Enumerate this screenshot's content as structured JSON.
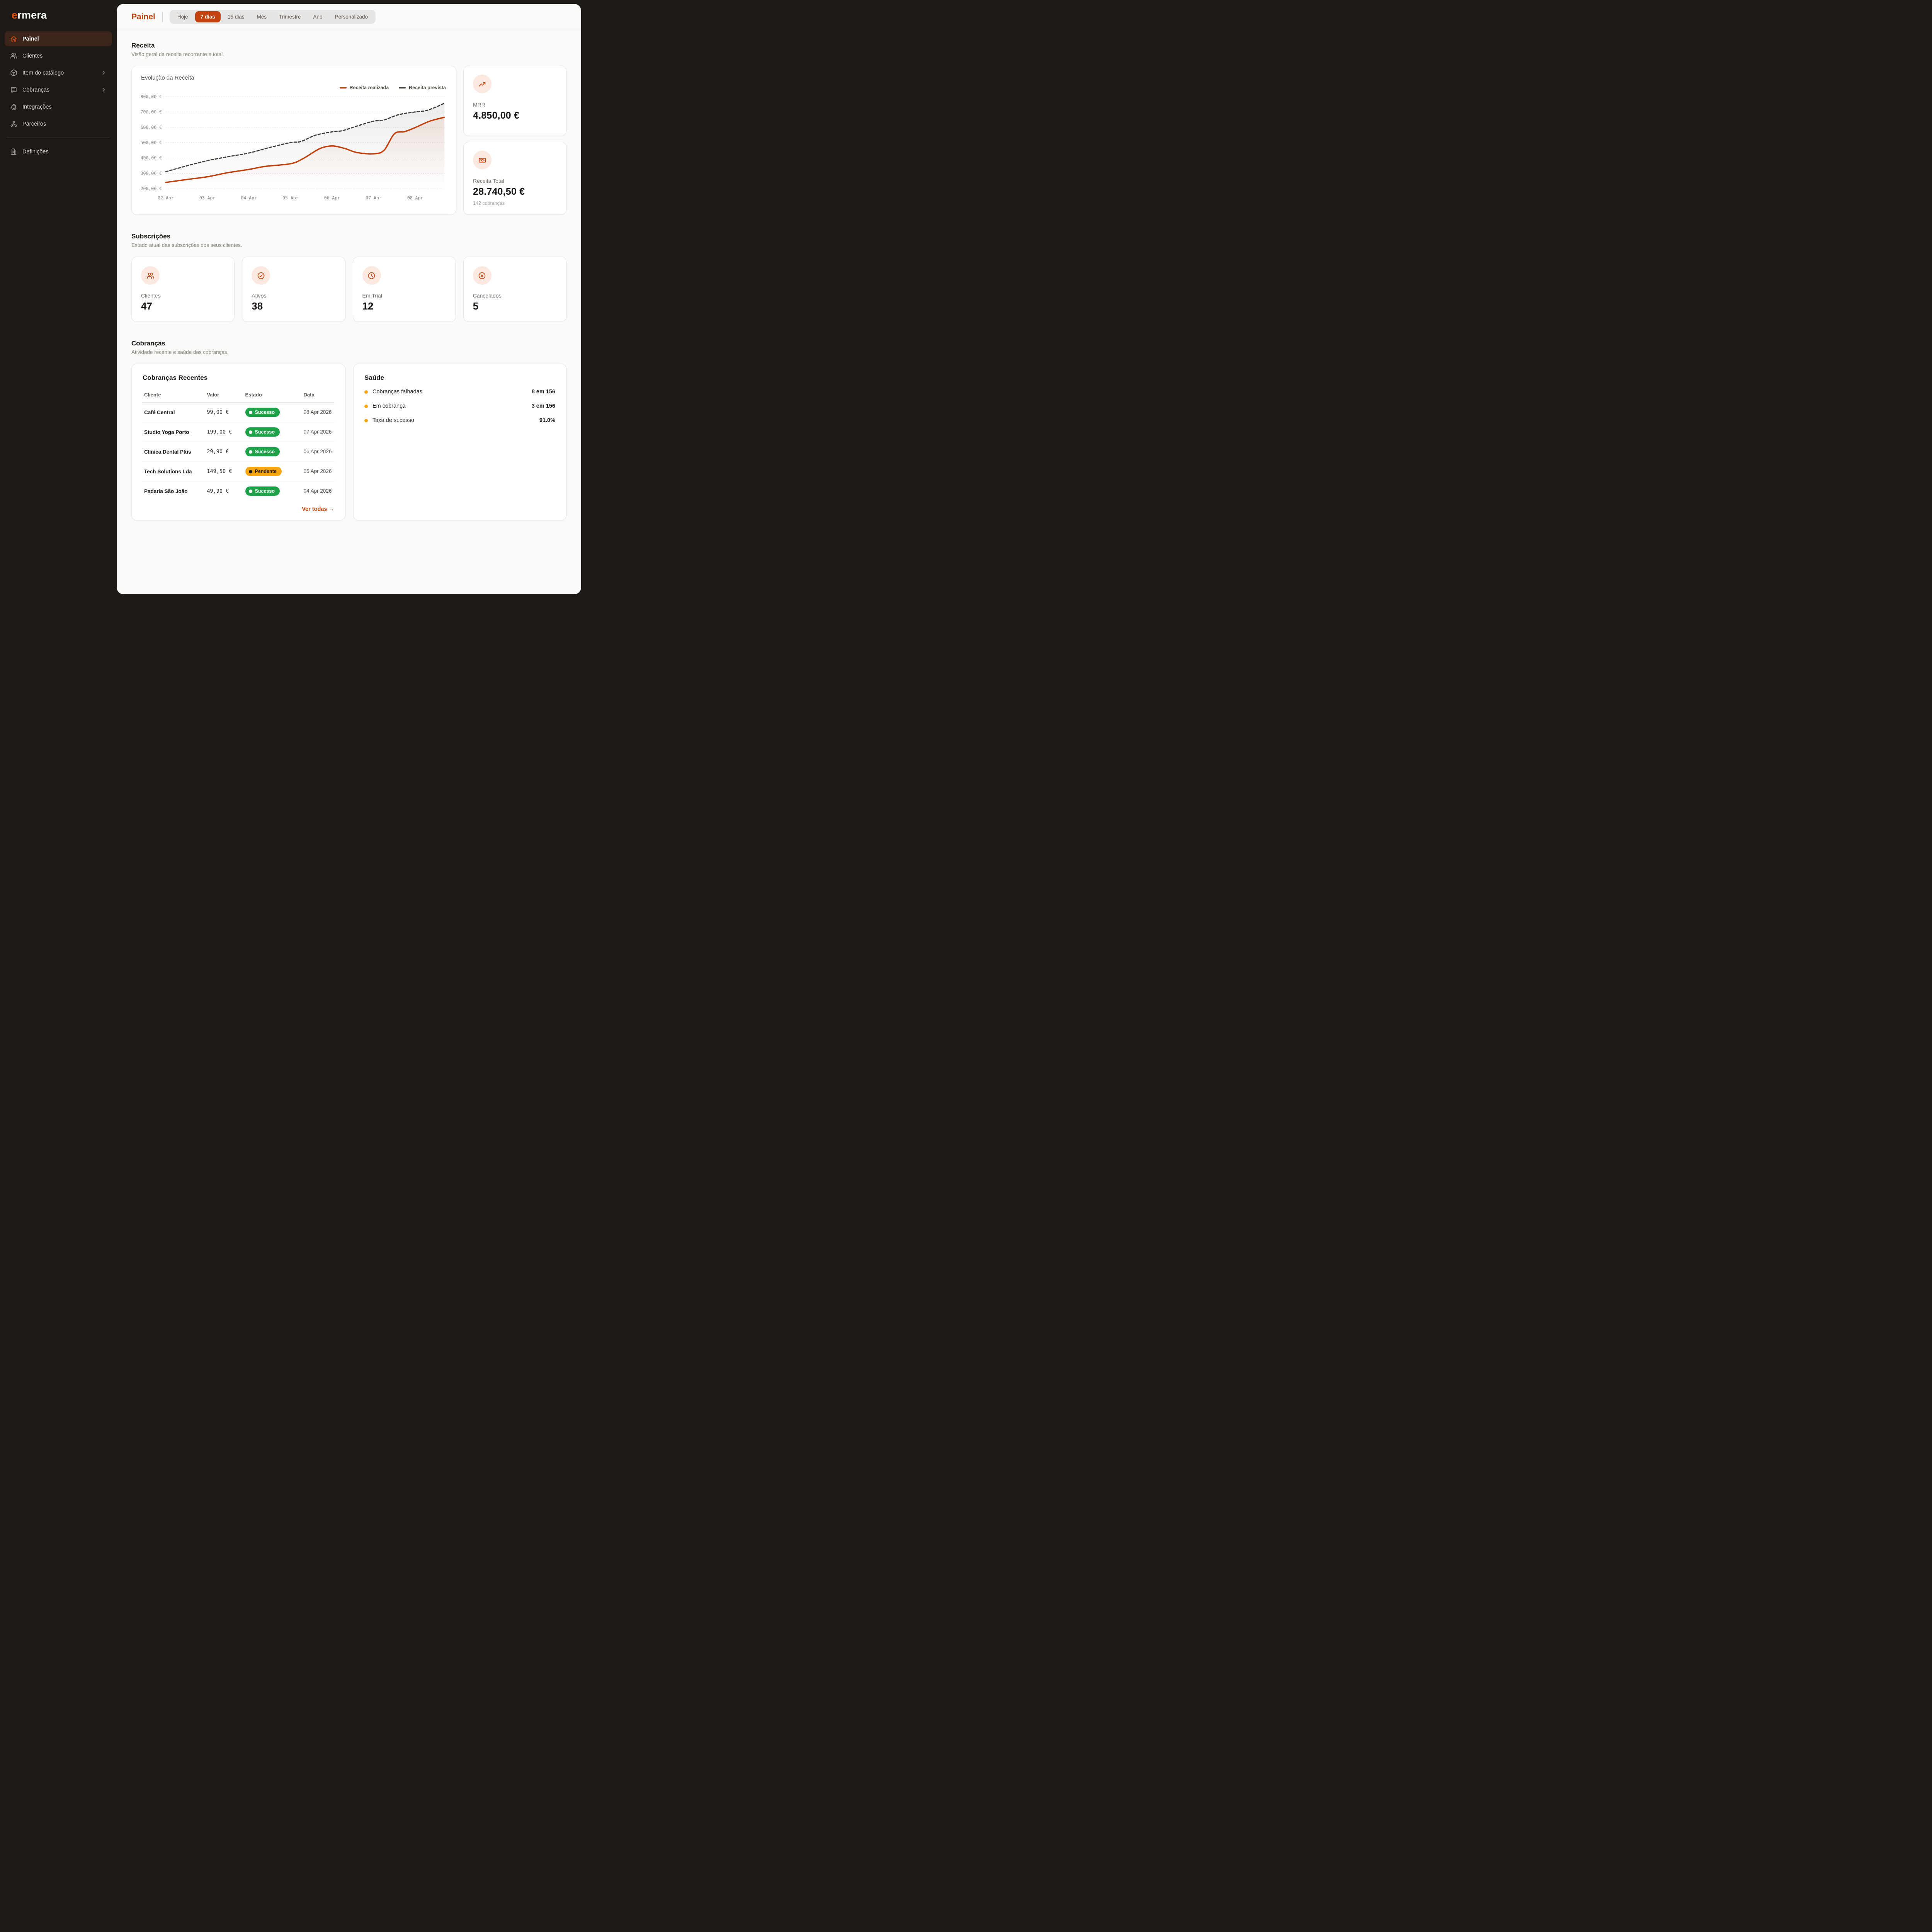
{
  "sidebar": {
    "logo_accent": "e",
    "logo_rest": "rmera",
    "items": [
      {
        "label": "Painel",
        "icon": "home",
        "active": true
      },
      {
        "label": "Clientes",
        "icon": "users"
      },
      {
        "label": "Item do catálogo",
        "icon": "package",
        "chevron": true
      },
      {
        "label": "Cobranças",
        "icon": "receipt",
        "chevron": true
      },
      {
        "label": "Integrações",
        "icon": "puzzle"
      },
      {
        "label": "Parceiros",
        "icon": "network"
      }
    ],
    "footer_item": {
      "label": "Definições",
      "icon": "building"
    }
  },
  "header": {
    "title": "Painel",
    "tabs": [
      {
        "label": "Hoje"
      },
      {
        "label": "7 dias",
        "active": true
      },
      {
        "label": "15 dias"
      },
      {
        "label": "Mês"
      },
      {
        "label": "Trimestre"
      },
      {
        "label": "Ano"
      },
      {
        "label": "Personalizado"
      }
    ]
  },
  "revenue_section": {
    "title": "Receita",
    "subtitle": "Visão geral da receita recorrente e total.",
    "card_title": "Evolução da Receita",
    "legend": [
      {
        "label": "Receita realizada",
        "color": "#C2410C"
      },
      {
        "label": "Receita prevista",
        "color": "#44403C"
      }
    ]
  },
  "chart_data": {
    "type": "line",
    "title": "Evolução da Receita",
    "x_ticks": [
      "02 Apr",
      "03 Apr",
      "04 Apr",
      "05 Apr",
      "06 Apr",
      "07 Apr",
      "08 Apr"
    ],
    "x_tick_days": [
      2,
      3,
      4,
      5,
      6,
      7,
      8
    ],
    "x_range": [
      2,
      8.7
    ],
    "ylim": [
      200,
      800
    ],
    "y_ticks": [
      "200,00 €",
      "300,00 €",
      "400,00 €",
      "500,00 €",
      "600,00 €",
      "700,00 €",
      "800,00 €"
    ],
    "y_tick_values": [
      200,
      300,
      400,
      500,
      600,
      700,
      800
    ],
    "grid": "dotted-horizontal",
    "legend_position": "top-right",
    "series": [
      {
        "name": "Receita realizada",
        "color": "#C2410C",
        "style": "solid",
        "points": [
          [
            2,
            240
          ],
          [
            2.5,
            259
          ],
          [
            3,
            277
          ],
          [
            3.5,
            304
          ],
          [
            4,
            325
          ],
          [
            4.4,
            345
          ],
          [
            5,
            362
          ],
          [
            5.3,
            395
          ],
          [
            5.7,
            460
          ],
          [
            6,
            478
          ],
          [
            6.3,
            462
          ],
          [
            6.6,
            435
          ],
          [
            7,
            427
          ],
          [
            7.25,
            450
          ],
          [
            7.5,
            558
          ],
          [
            7.75,
            572
          ],
          [
            8,
            598
          ],
          [
            8.35,
            640
          ],
          [
            8.7,
            665
          ]
        ]
      },
      {
        "name": "Receita prevista",
        "color": "#44403C",
        "style": "dashed",
        "points": [
          [
            2,
            310
          ],
          [
            2.5,
            348
          ],
          [
            3,
            382
          ],
          [
            3.5,
            408
          ],
          [
            4,
            432
          ],
          [
            4.5,
            468
          ],
          [
            5,
            500
          ],
          [
            5.25,
            507
          ],
          [
            5.6,
            548
          ],
          [
            6,
            570
          ],
          [
            6.25,
            578
          ],
          [
            6.6,
            608
          ],
          [
            7,
            640
          ],
          [
            7.25,
            648
          ],
          [
            7.6,
            682
          ],
          [
            8,
            700
          ],
          [
            8.25,
            708
          ],
          [
            8.5,
            732
          ],
          [
            8.7,
            757
          ]
        ]
      }
    ]
  },
  "stats": {
    "mrr": {
      "label": "MRR",
      "value": "4.850,00 €"
    },
    "total": {
      "label": "Receita Total",
      "value": "28.740,50 €",
      "note": "142 cobranças"
    }
  },
  "subscriptions_section": {
    "title": "Subscrições",
    "subtitle": "Estado atual das subscrições dos seus clientes.",
    "cards": [
      {
        "label": "Clientes",
        "value": "47",
        "icon": "users"
      },
      {
        "label": "Ativos",
        "value": "38",
        "icon": "check-circle"
      },
      {
        "label": "Em Trial",
        "value": "12",
        "icon": "clock"
      },
      {
        "label": "Cancelados",
        "value": "5",
        "icon": "x-circle"
      }
    ]
  },
  "billing_section": {
    "title": "Cobranças",
    "subtitle": "Atividade recente e saúde das cobranças.",
    "recent": {
      "title": "Cobranças Recentes",
      "columns": [
        "Cliente",
        "Valor",
        "Estado",
        "Data"
      ],
      "rows": [
        {
          "client": "Café Central",
          "amount": "99,00 €",
          "status": "Sucesso",
          "status_type": "success",
          "date": "08 Apr 2026"
        },
        {
          "client": "Studio Yoga Porto",
          "amount": "199,00 €",
          "status": "Sucesso",
          "status_type": "success",
          "date": "07 Apr 2026"
        },
        {
          "client": "Clínica Dental Plus",
          "amount": "29,90 €",
          "status": "Sucesso",
          "status_type": "success",
          "date": "06 Apr 2026"
        },
        {
          "client": "Tech Solutions Lda",
          "amount": "149,50 €",
          "status": "Pendente",
          "status_type": "pending",
          "date": "05 Apr 2026"
        },
        {
          "client": "Padaria São João",
          "amount": "49,90 €",
          "status": "Sucesso",
          "status_type": "success",
          "date": "04 Apr 2026"
        }
      ],
      "link": "Ver todas →"
    },
    "health": {
      "title": "Saúde",
      "rows": [
        {
          "label": "Cobranças falhadas",
          "value": "8 em 156"
        },
        {
          "label": "Em cobrança",
          "value": "3 em 156"
        },
        {
          "label": "Taxa de sucesso",
          "value": "91.0%"
        }
      ]
    }
  },
  "colors": {
    "accent": "#C2410C",
    "accent_bright": "#E04E0D",
    "success": "#1EA34A",
    "pending": "#F5A50F",
    "sidebar_bg": "#1D1917",
    "panel_bg": "#FAFAF9"
  }
}
